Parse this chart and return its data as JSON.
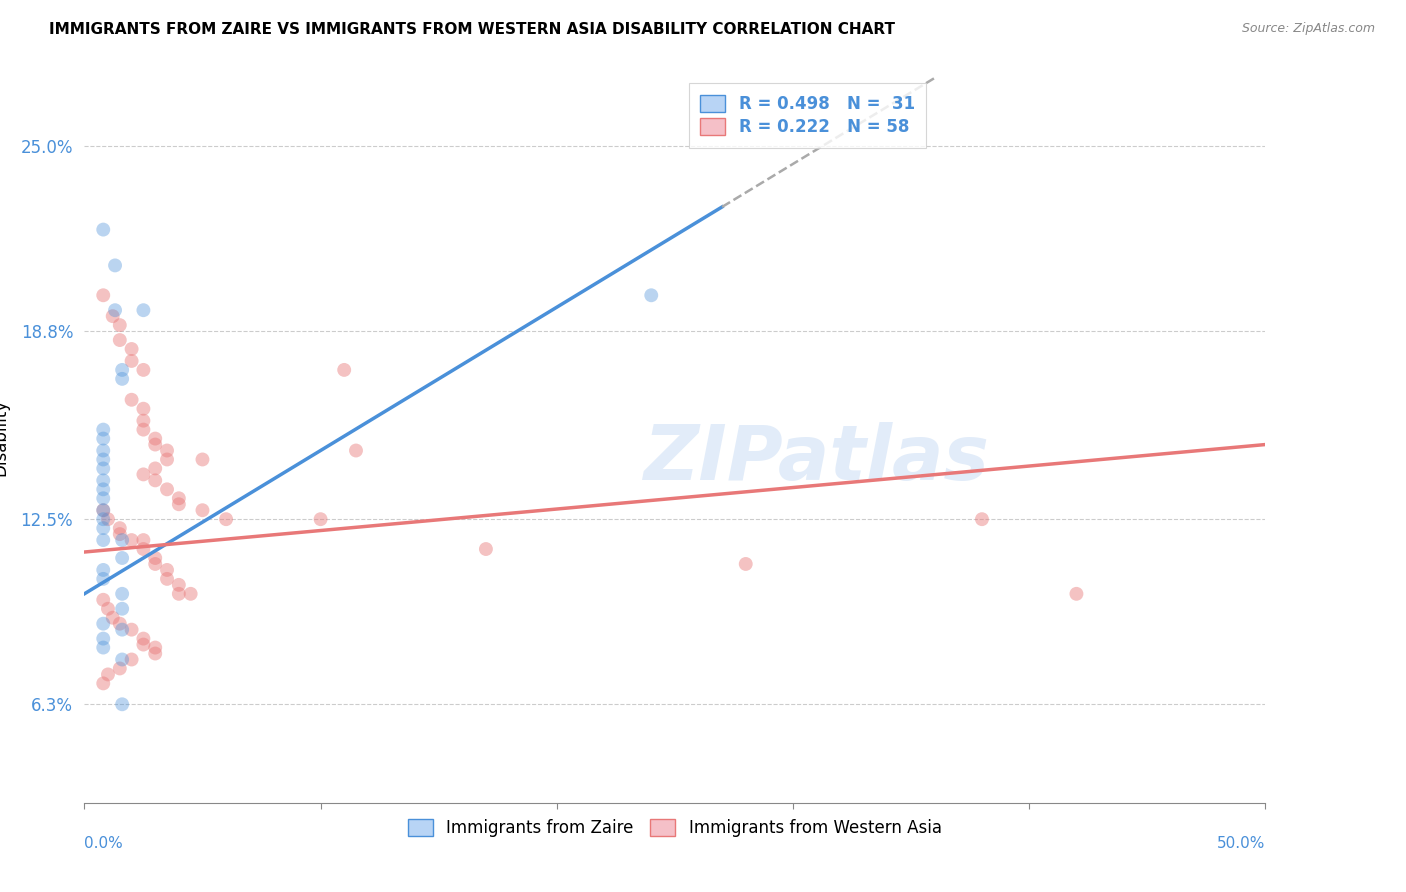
{
  "title": "IMMIGRANTS FROM ZAIRE VS IMMIGRANTS FROM WESTERN ASIA DISABILITY CORRELATION CHART",
  "source": "Source: ZipAtlas.com",
  "ylabel": "Disability",
  "yticks": [
    0.063,
    0.125,
    0.188,
    0.25
  ],
  "ytick_labels": [
    "6.3%",
    "12.5%",
    "18.8%",
    "25.0%"
  ],
  "xlim": [
    0.0,
    0.5
  ],
  "ylim": [
    0.03,
    0.275
  ],
  "watermark": "ZIPatlas",
  "blue_color": "#4a90d9",
  "pink_color": "#e87878",
  "zaire_dots": [
    [
      0.008,
      0.222
    ],
    [
      0.013,
      0.21
    ],
    [
      0.013,
      0.195
    ],
    [
      0.025,
      0.195
    ],
    [
      0.016,
      0.175
    ],
    [
      0.016,
      0.172
    ],
    [
      0.008,
      0.155
    ],
    [
      0.008,
      0.152
    ],
    [
      0.008,
      0.148
    ],
    [
      0.008,
      0.145
    ],
    [
      0.008,
      0.142
    ],
    [
      0.008,
      0.138
    ],
    [
      0.008,
      0.135
    ],
    [
      0.008,
      0.132
    ],
    [
      0.008,
      0.128
    ],
    [
      0.008,
      0.125
    ],
    [
      0.008,
      0.122
    ],
    [
      0.008,
      0.118
    ],
    [
      0.016,
      0.118
    ],
    [
      0.016,
      0.112
    ],
    [
      0.008,
      0.108
    ],
    [
      0.008,
      0.105
    ],
    [
      0.016,
      0.1
    ],
    [
      0.016,
      0.095
    ],
    [
      0.008,
      0.09
    ],
    [
      0.016,
      0.088
    ],
    [
      0.008,
      0.085
    ],
    [
      0.008,
      0.082
    ],
    [
      0.016,
      0.078
    ],
    [
      0.24,
      0.2
    ],
    [
      0.016,
      0.063
    ]
  ],
  "western_dots": [
    [
      0.008,
      0.2
    ],
    [
      0.012,
      0.193
    ],
    [
      0.015,
      0.19
    ],
    [
      0.015,
      0.185
    ],
    [
      0.02,
      0.182
    ],
    [
      0.02,
      0.178
    ],
    [
      0.025,
      0.175
    ],
    [
      0.02,
      0.165
    ],
    [
      0.025,
      0.162
    ],
    [
      0.025,
      0.158
    ],
    [
      0.025,
      0.155
    ],
    [
      0.03,
      0.152
    ],
    [
      0.03,
      0.15
    ],
    [
      0.035,
      0.148
    ],
    [
      0.035,
      0.145
    ],
    [
      0.03,
      0.142
    ],
    [
      0.025,
      0.14
    ],
    [
      0.03,
      0.138
    ],
    [
      0.035,
      0.135
    ],
    [
      0.04,
      0.132
    ],
    [
      0.04,
      0.13
    ],
    [
      0.008,
      0.128
    ],
    [
      0.01,
      0.125
    ],
    [
      0.015,
      0.122
    ],
    [
      0.015,
      0.12
    ],
    [
      0.02,
      0.118
    ],
    [
      0.025,
      0.118
    ],
    [
      0.025,
      0.115
    ],
    [
      0.03,
      0.112
    ],
    [
      0.03,
      0.11
    ],
    [
      0.035,
      0.108
    ],
    [
      0.035,
      0.105
    ],
    [
      0.04,
      0.103
    ],
    [
      0.04,
      0.1
    ],
    [
      0.045,
      0.1
    ],
    [
      0.008,
      0.098
    ],
    [
      0.01,
      0.095
    ],
    [
      0.012,
      0.092
    ],
    [
      0.015,
      0.09
    ],
    [
      0.02,
      0.088
    ],
    [
      0.025,
      0.085
    ],
    [
      0.025,
      0.083
    ],
    [
      0.03,
      0.082
    ],
    [
      0.03,
      0.08
    ],
    [
      0.02,
      0.078
    ],
    [
      0.015,
      0.075
    ],
    [
      0.01,
      0.073
    ],
    [
      0.38,
      0.125
    ],
    [
      0.42,
      0.1
    ],
    [
      0.1,
      0.125
    ],
    [
      0.17,
      0.115
    ],
    [
      0.28,
      0.11
    ],
    [
      0.11,
      0.175
    ],
    [
      0.115,
      0.148
    ],
    [
      0.05,
      0.145
    ],
    [
      0.05,
      0.128
    ],
    [
      0.06,
      0.125
    ],
    [
      0.008,
      0.07
    ]
  ],
  "zaire_intercept": 0.1,
  "zaire_slope": 0.48,
  "zaire_line_end_solid": 0.27,
  "zaire_line_end_dashed": 0.36,
  "western_intercept": 0.114,
  "western_slope": 0.072,
  "western_line_start": 0.0,
  "western_line_end": 0.5
}
